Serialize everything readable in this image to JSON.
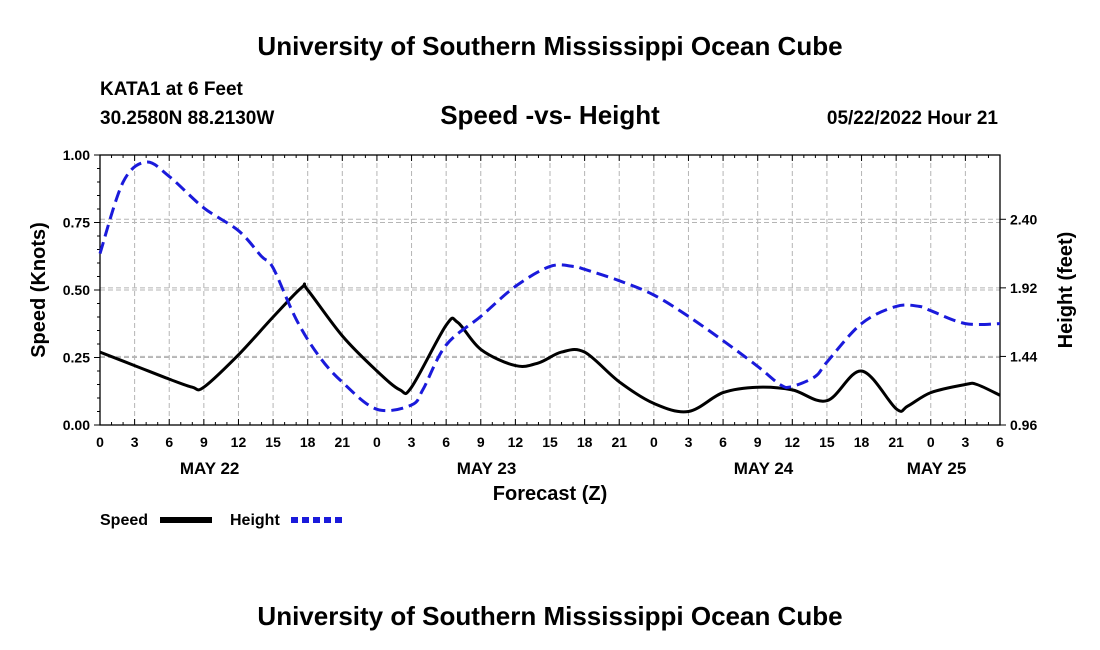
{
  "header": {
    "title": "University of Southern Mississippi Ocean Cube",
    "station": "KATA1 at 6 Feet",
    "coords": "30.2580N  88.2130W",
    "date": "05/22/2022 Hour 21",
    "footer_title": "University of Southern Mississippi Ocean Cube"
  },
  "chart_data": {
    "type": "line",
    "title": "Speed -vs- Height",
    "xlabel": "Forecast (Z)",
    "ylabel": "Speed (Knots)",
    "y2label": "Height (feet)",
    "ylim": [
      0,
      1
    ],
    "y2lim": [
      0.96,
      2.85
    ],
    "xlim": [
      0,
      78
    ],
    "yticks": [
      "0.00",
      "0.25",
      "0.50",
      "0.75",
      "1.00"
    ],
    "y2ticks": [
      "0.96",
      "1.44",
      "1.92",
      "2.40"
    ],
    "xticklabels": [
      "0",
      "3",
      "6",
      "9",
      "12",
      "15",
      "18",
      "21",
      "0",
      "3",
      "6",
      "9",
      "12",
      "15",
      "18",
      "21",
      "0",
      "3",
      "6",
      "9",
      "12",
      "15",
      "18",
      "21",
      "0",
      "3",
      "6"
    ],
    "day_labels": [
      {
        "label": "MAY 22",
        "hour": 9.5
      },
      {
        "label": "MAY 23",
        "hour": 33.5
      },
      {
        "label": "MAY 24",
        "hour": 57.5
      },
      {
        "label": "MAY 25",
        "hour": 72.5
      }
    ],
    "grid": true,
    "legend": [
      {
        "name": "Speed",
        "color": "#000000",
        "style": "solid"
      },
      {
        "name": "Height",
        "color": "#1a1adb",
        "style": "dashed"
      }
    ],
    "series": [
      {
        "name": "Speed",
        "axis": "left",
        "x": [
          0,
          3,
          6,
          8,
          9,
          12,
          15,
          17.5,
          18,
          21,
          24,
          26,
          27,
          30,
          31,
          33,
          36,
          38,
          40,
          42,
          45,
          48,
          51,
          54,
          57,
          60,
          63,
          66,
          69,
          70,
          72,
          75,
          76,
          78
        ],
        "values": [
          0.27,
          0.22,
          0.17,
          0.14,
          0.14,
          0.26,
          0.4,
          0.51,
          0.5,
          0.33,
          0.2,
          0.13,
          0.14,
          0.37,
          0.38,
          0.28,
          0.22,
          0.23,
          0.27,
          0.27,
          0.16,
          0.08,
          0.05,
          0.12,
          0.14,
          0.13,
          0.09,
          0.2,
          0.06,
          0.07,
          0.12,
          0.15,
          0.15,
          0.11
        ]
      },
      {
        "name": "Height",
        "axis": "right",
        "x": [
          0,
          2,
          4,
          6,
          9,
          12,
          14,
          15,
          17,
          19,
          21,
          24,
          27,
          28,
          30,
          33,
          36,
          39,
          41,
          42,
          45,
          48,
          51,
          54,
          57,
          59,
          60,
          62,
          63,
          66,
          69,
          71,
          72,
          75,
          78
        ],
        "values": [
          2.16,
          2.66,
          2.8,
          2.7,
          2.48,
          2.32,
          2.14,
          2.06,
          1.7,
          1.44,
          1.26,
          1.07,
          1.1,
          1.21,
          1.52,
          1.72,
          1.93,
          2.07,
          2.07,
          2.05,
          1.97,
          1.87,
          1.72,
          1.55,
          1.37,
          1.24,
          1.23,
          1.3,
          1.4,
          1.67,
          1.79,
          1.79,
          1.76,
          1.67,
          1.67
        ]
      }
    ]
  }
}
